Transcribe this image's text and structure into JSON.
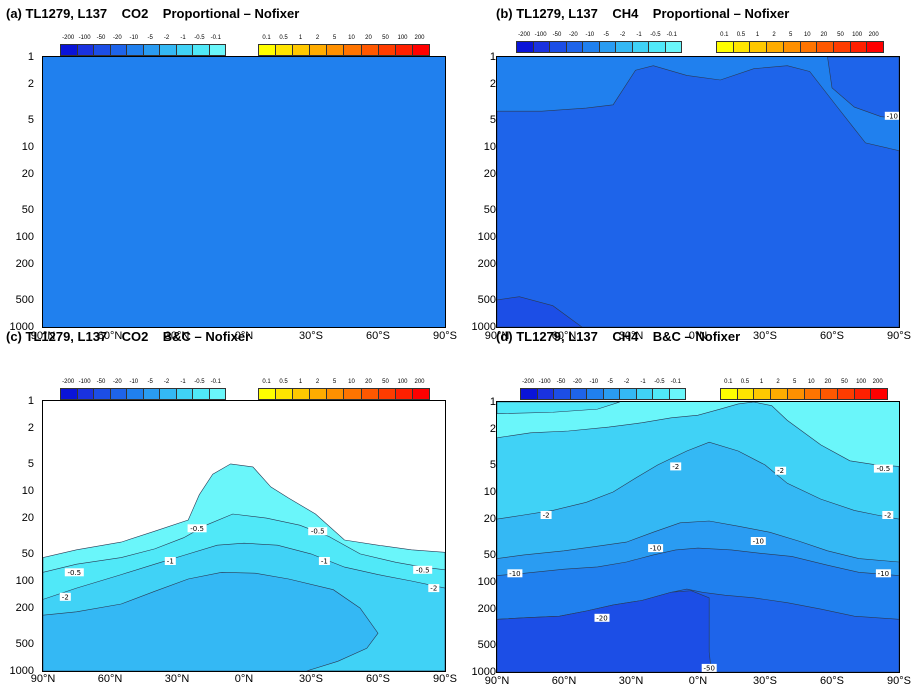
{
  "colorbar": {
    "neg_labels": [
      "-200",
      "-100",
      "-50",
      "-20",
      "-10",
      "-5",
      "-2",
      "-1",
      "-0.5",
      "-0.1"
    ],
    "neg_colors": [
      "#0a14d8",
      "#1a32e0",
      "#1c4ee6",
      "#1e64ea",
      "#2080ee",
      "#2a9cf2",
      "#34b8f4",
      "#40d2f6",
      "#50e8f8",
      "#6af6fa"
    ],
    "pos_labels": [
      "0.1",
      "0.5",
      "1",
      "2",
      "5",
      "10",
      "20",
      "50",
      "100",
      "200"
    ],
    "pos_colors": [
      "#ffff00",
      "#ffe400",
      "#ffc800",
      "#ffac00",
      "#ff9000",
      "#ff7400",
      "#ff5800",
      "#ff3c00",
      "#ff2000",
      "#ff0000"
    ]
  },
  "axes": {
    "y_ticks": [
      "1",
      "2",
      "5",
      "10",
      "20",
      "50",
      "100",
      "200",
      "500",
      "1000"
    ],
    "x_ticks": [
      "90°N",
      "60°N",
      "30°N",
      "0°N",
      "30°S",
      "60°S",
      "90°S"
    ]
  },
  "chart_data": [
    {
      "type": "contour",
      "title": "(a) TL1279, L137    CO2    Proportional – Nofixer",
      "x_ticks": [
        "90°N",
        "60°N",
        "30°N",
        "0°N",
        "30°S",
        "60°S",
        "90°S"
      ],
      "y_ticks": [
        1,
        2,
        5,
        10,
        20,
        50,
        100,
        200,
        500,
        1000
      ],
      "y_scale": "log",
      "fill_level": "-5 to -2",
      "contour_labels": []
    },
    {
      "type": "contour",
      "title": "(b) TL1279, L137    CH4    Proportional – Nofixer",
      "x_ticks": [
        "90°N",
        "60°N",
        "30°N",
        "0°N",
        "30°S",
        "60°S",
        "90°S"
      ],
      "y_ticks": [
        1,
        2,
        5,
        10,
        20,
        50,
        100,
        200,
        500,
        1000
      ],
      "y_scale": "log",
      "contour_labels": [
        "-10"
      ]
    },
    {
      "type": "contour",
      "title": "(c) TL1279, L137    CO2    B&C – Nofixer",
      "x_ticks": [
        "90°N",
        "60°N",
        "30°N",
        "0°N",
        "30°S",
        "60°S",
        "90°S"
      ],
      "y_ticks": [
        1,
        2,
        5,
        10,
        20,
        50,
        100,
        200,
        500,
        1000
      ],
      "y_scale": "log",
      "contour_labels": [
        "-0.5",
        "-1",
        "-2",
        "-0.5",
        "-1",
        "-2",
        "-0.5",
        "-1",
        "-2"
      ]
    },
    {
      "type": "contour",
      "title": "(d) TL1279, L137    CH4    B&C – Nofixer",
      "x_ticks": [
        "90°N",
        "60°N",
        "30°N",
        "0°N",
        "30°S",
        "60°S",
        "90°S"
      ],
      "y_ticks": [
        1,
        2,
        5,
        10,
        20,
        50,
        100,
        200,
        500,
        1000
      ],
      "y_scale": "log",
      "contour_labels": [
        "-0.5",
        "-2",
        "-5",
        "-2",
        "-2",
        "-10",
        "-10",
        "-10",
        "-10",
        "-20",
        "-50"
      ]
    }
  ]
}
